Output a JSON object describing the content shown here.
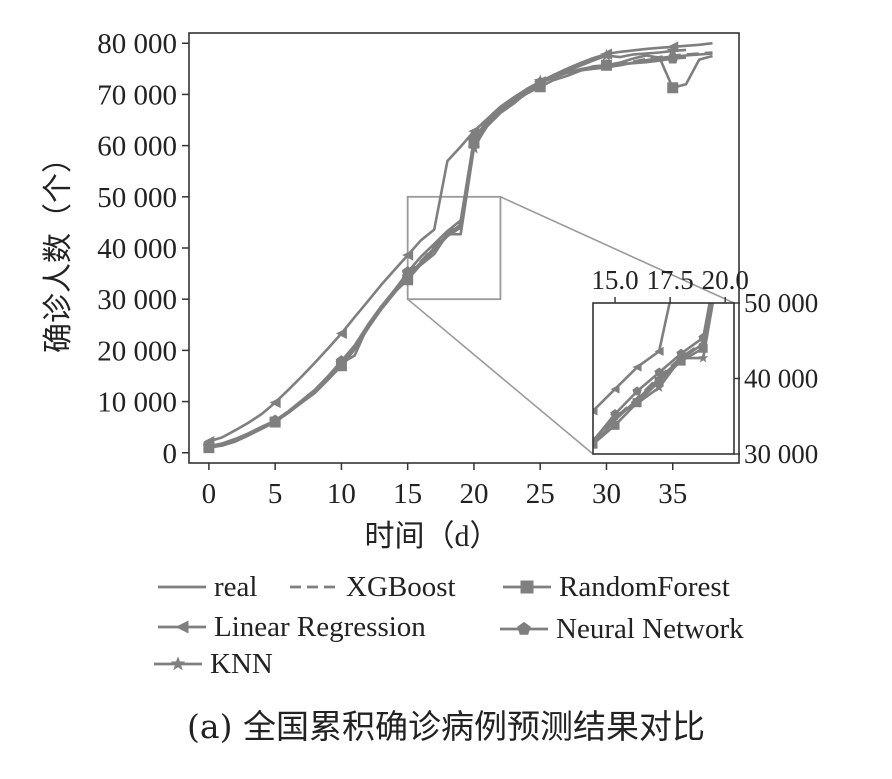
{
  "colors": {
    "line": "#7f7f7f",
    "inset_box": "#9a9a9a",
    "text": "#222222",
    "axis": "#333333"
  },
  "chart_data": [
    {
      "type": "line",
      "title": "",
      "xlabel": "时间（d）",
      "ylabel": "确诊人数（个）",
      "xlim": [
        -1.5,
        40
      ],
      "ylim": [
        -2000,
        82000
      ],
      "x_ticks": [
        0,
        5,
        10,
        15,
        20,
        25,
        30,
        35
      ],
      "y_ticks": [
        0,
        10000,
        20000,
        30000,
        40000,
        50000,
        60000,
        70000,
        80000
      ],
      "y_tick_labels": [
        "0",
        "10 000",
        "20 000",
        "30 000",
        "40 000",
        "50 000",
        "60 000",
        "70 000",
        "80 000"
      ],
      "grid": false,
      "legend_position": "bottom",
      "series": [
        {
          "name": "real",
          "marker": "none",
          "x": [
            0,
            1,
            2,
            3,
            4,
            5,
            6,
            7,
            8,
            9,
            10,
            11,
            12,
            13,
            14,
            15,
            16,
            17,
            18,
            19,
            20,
            21,
            22,
            23,
            24,
            25,
            26,
            27,
            28,
            29,
            30,
            31,
            32,
            33,
            34,
            35,
            36,
            37,
            38
          ],
          "y": [
            1000,
            1500,
            2300,
            3500,
            4800,
            6000,
            7800,
            9800,
            11800,
            14400,
            17000,
            20400,
            24300,
            28000,
            31200,
            34500,
            37200,
            40000,
            42600,
            44600,
            59800,
            63800,
            66400,
            68200,
            70400,
            72300,
            73300,
            74200,
            74700,
            75000,
            75300,
            75700,
            76200,
            76700,
            77100,
            77400,
            77600,
            77800,
            78000
          ]
        },
        {
          "name": "XGBoost",
          "marker": "none",
          "dashed": true,
          "x": [
            0,
            1,
            2,
            3,
            4,
            5,
            6,
            7,
            8,
            9,
            10,
            11,
            12,
            13,
            14,
            15,
            16,
            17,
            18,
            19,
            20,
            21,
            22,
            23,
            24,
            25,
            26,
            27,
            28,
            29,
            30,
            31,
            32,
            33,
            34,
            35,
            36,
            37,
            38
          ],
          "y": [
            1200,
            1700,
            2500,
            3700,
            5000,
            6200,
            8000,
            10000,
            12000,
            14600,
            17200,
            20600,
            24500,
            28200,
            31400,
            34700,
            37400,
            40200,
            42800,
            44800,
            60000,
            64000,
            66600,
            68400,
            70600,
            72500,
            73500,
            74400,
            74900,
            75200,
            75500,
            75900,
            76400,
            76900,
            77300,
            77600,
            77800,
            78000,
            78200
          ]
        },
        {
          "name": "RandomForest",
          "marker": "square",
          "x": [
            0,
            1,
            2,
            3,
            4,
            5,
            6,
            7,
            8,
            9,
            10,
            11,
            12,
            13,
            14,
            15,
            16,
            17,
            18,
            19,
            20,
            21,
            22,
            23,
            24,
            25,
            26,
            27,
            28,
            29,
            30,
            31,
            32,
            33,
            34,
            35,
            36,
            37,
            38
          ],
          "y": [
            1000,
            1400,
            2200,
            3400,
            4700,
            6000,
            7900,
            9800,
            11700,
            14300,
            17000,
            20200,
            24300,
            28300,
            31300,
            33800,
            36800,
            39600,
            42300,
            44000,
            60500,
            64400,
            67000,
            68500,
            70200,
            71500,
            72800,
            73600,
            74600,
            75500,
            75700,
            76200,
            77000,
            77600,
            77200,
            71300,
            72000,
            76800,
            77500
          ]
        },
        {
          "name": "Linear Regression",
          "marker": "triangle-left",
          "x": [
            0,
            1,
            2,
            3,
            4,
            5,
            6,
            7,
            8,
            9,
            10,
            11,
            12,
            13,
            14,
            15,
            16,
            17,
            18,
            19,
            20,
            21,
            22,
            23,
            24,
            25,
            26,
            27,
            28,
            29,
            30,
            31,
            32,
            33,
            34,
            35,
            36,
            37,
            38
          ],
          "y": [
            2200,
            3000,
            4400,
            5900,
            7600,
            9800,
            12300,
            14900,
            17600,
            20400,
            23300,
            26500,
            29600,
            32800,
            35700,
            38600,
            41500,
            43600,
            57000,
            59800,
            62800,
            65200,
            67600,
            69400,
            71100,
            72500,
            73800,
            75000,
            76100,
            77100,
            77900,
            78300,
            78600,
            78900,
            79100,
            79300,
            79500,
            79700,
            80000
          ]
        },
        {
          "name": "Neural Network",
          "marker": "pentagon",
          "x": [
            0,
            1,
            2,
            3,
            4,
            5,
            6,
            7,
            8,
            9,
            10,
            11,
            12,
            13,
            14,
            15,
            16,
            17,
            18,
            19,
            20,
            21,
            22,
            23,
            24,
            25,
            26,
            27,
            28,
            29,
            30,
            31,
            32,
            33,
            34,
            35,
            36
          ],
          "y": [
            1300,
            1800,
            2700,
            3800,
            5100,
            6300,
            8100,
            10200,
            12300,
            15000,
            17900,
            21000,
            25000,
            28600,
            31700,
            35300,
            38300,
            40800,
            43300,
            45400,
            61200,
            64900,
            67300,
            68900,
            70700,
            72300,
            73300,
            74300,
            74900,
            75400,
            75700,
            75900,
            76100,
            76300,
            76600,
            77000,
            77200
          ]
        },
        {
          "name": "KNN",
          "marker": "star",
          "x": [
            0,
            1,
            2,
            3,
            4,
            5,
            6,
            7,
            8,
            9,
            10,
            11,
            12,
            13,
            14,
            15,
            16,
            17,
            18,
            19,
            20,
            21,
            22,
            23,
            24,
            25,
            26,
            27,
            28,
            29,
            30,
            31,
            32,
            33,
            34,
            35,
            36
          ],
          "y": [
            1100,
            1600,
            2400,
            3600,
            4900,
            6100,
            7900,
            9900,
            11900,
            14500,
            17500,
            19000,
            24800,
            28500,
            31800,
            35000,
            36700,
            38800,
            42700,
            42700,
            59500,
            64000,
            66500,
            68600,
            70800,
            72600,
            73600,
            74600,
            75600,
            76600,
            77600,
            77300,
            77800,
            78000,
            78200,
            78500,
            78700
          ]
        }
      ]
    },
    {
      "type": "line",
      "description_role": "inset",
      "xlim": [
        14.0,
        20.4
      ],
      "ylim": [
        30000,
        50000
      ],
      "x_ticks": [
        15.0,
        17.5,
        20.0
      ],
      "x_tick_labels": [
        "15.0",
        "17.5",
        "20.0"
      ],
      "y_ticks": [
        30000,
        40000,
        50000
      ],
      "y_tick_labels": [
        "30 000",
        "40 000",
        "50 000"
      ],
      "zoom_source": {
        "x": [
          15,
          22
        ],
        "y": [
          30000,
          50000
        ]
      }
    }
  ],
  "legend": {
    "entries": [
      "real",
      "XGBoost",
      "RandomForest",
      "Linear Regression",
      "Neural Network",
      "KNN"
    ]
  },
  "caption": "(a) 全国累积确诊病例预测结果对比"
}
